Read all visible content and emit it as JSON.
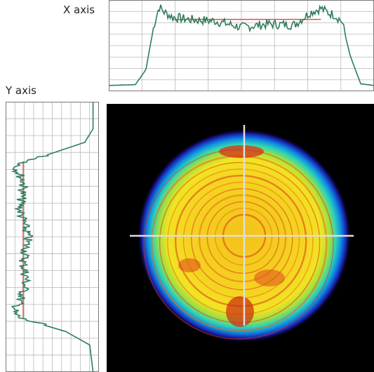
{
  "labels": {
    "x_axis": "X axis",
    "y_axis": "Y axis"
  },
  "colors": {
    "profile_line": "#2e7d5b",
    "flat_top_marker": "#d9534f",
    "grid": "#b9b9b9",
    "plot_border": "#7a7a7a",
    "image_background": "#000000",
    "crosshair": "#d8d8d8"
  },
  "chart_data": [
    {
      "type": "line",
      "title": "",
      "xlabel": "",
      "ylabel": "",
      "grid": true,
      "x": [
        0,
        0.1,
        0.14,
        0.17,
        0.19,
        0.21,
        0.24,
        0.3,
        0.4,
        0.5,
        0.6,
        0.7,
        0.76,
        0.8,
        0.83,
        0.85,
        0.88,
        0.91,
        0.95,
        1
      ],
      "series": [
        {
          "values": [
            0.02,
            0.03,
            0.22,
            0.78,
            1.02,
            0.95,
            0.89,
            0.86,
            0.84,
            0.76,
            0.8,
            0.79,
            0.95,
            1.0,
            0.94,
            0.92,
            0.83,
            0.4,
            0.04,
            0.02
          ]
        }
      ],
      "flat_top_level": 0.86
    },
    {
      "type": "line",
      "title": "",
      "xlabel": "",
      "ylabel": "",
      "grid": true,
      "orientation": "vertical",
      "y": [
        0,
        0.1,
        0.15,
        0.22,
        0.24,
        0.3,
        0.4,
        0.5,
        0.6,
        0.65,
        0.7,
        0.75,
        0.78,
        0.8,
        0.85,
        0.9,
        1
      ],
      "series": [
        {
          "values": [
            0.02,
            0.02,
            0.12,
            0.8,
            0.95,
            0.85,
            0.9,
            0.8,
            0.86,
            0.82,
            0.85,
            0.92,
            0.98,
            0.9,
            0.35,
            0.06,
            0.02
          ]
        }
      ],
      "flat_top_level": 0.86
    }
  ],
  "beam": {
    "type": "heatmap",
    "colormap": [
      "#1a10a0",
      "#0a7fe0",
      "#2bd6c0",
      "#7fe04a",
      "#f2e21e",
      "#f7b916",
      "#e8501a",
      "#c41e12"
    ],
    "rings": 11
  }
}
